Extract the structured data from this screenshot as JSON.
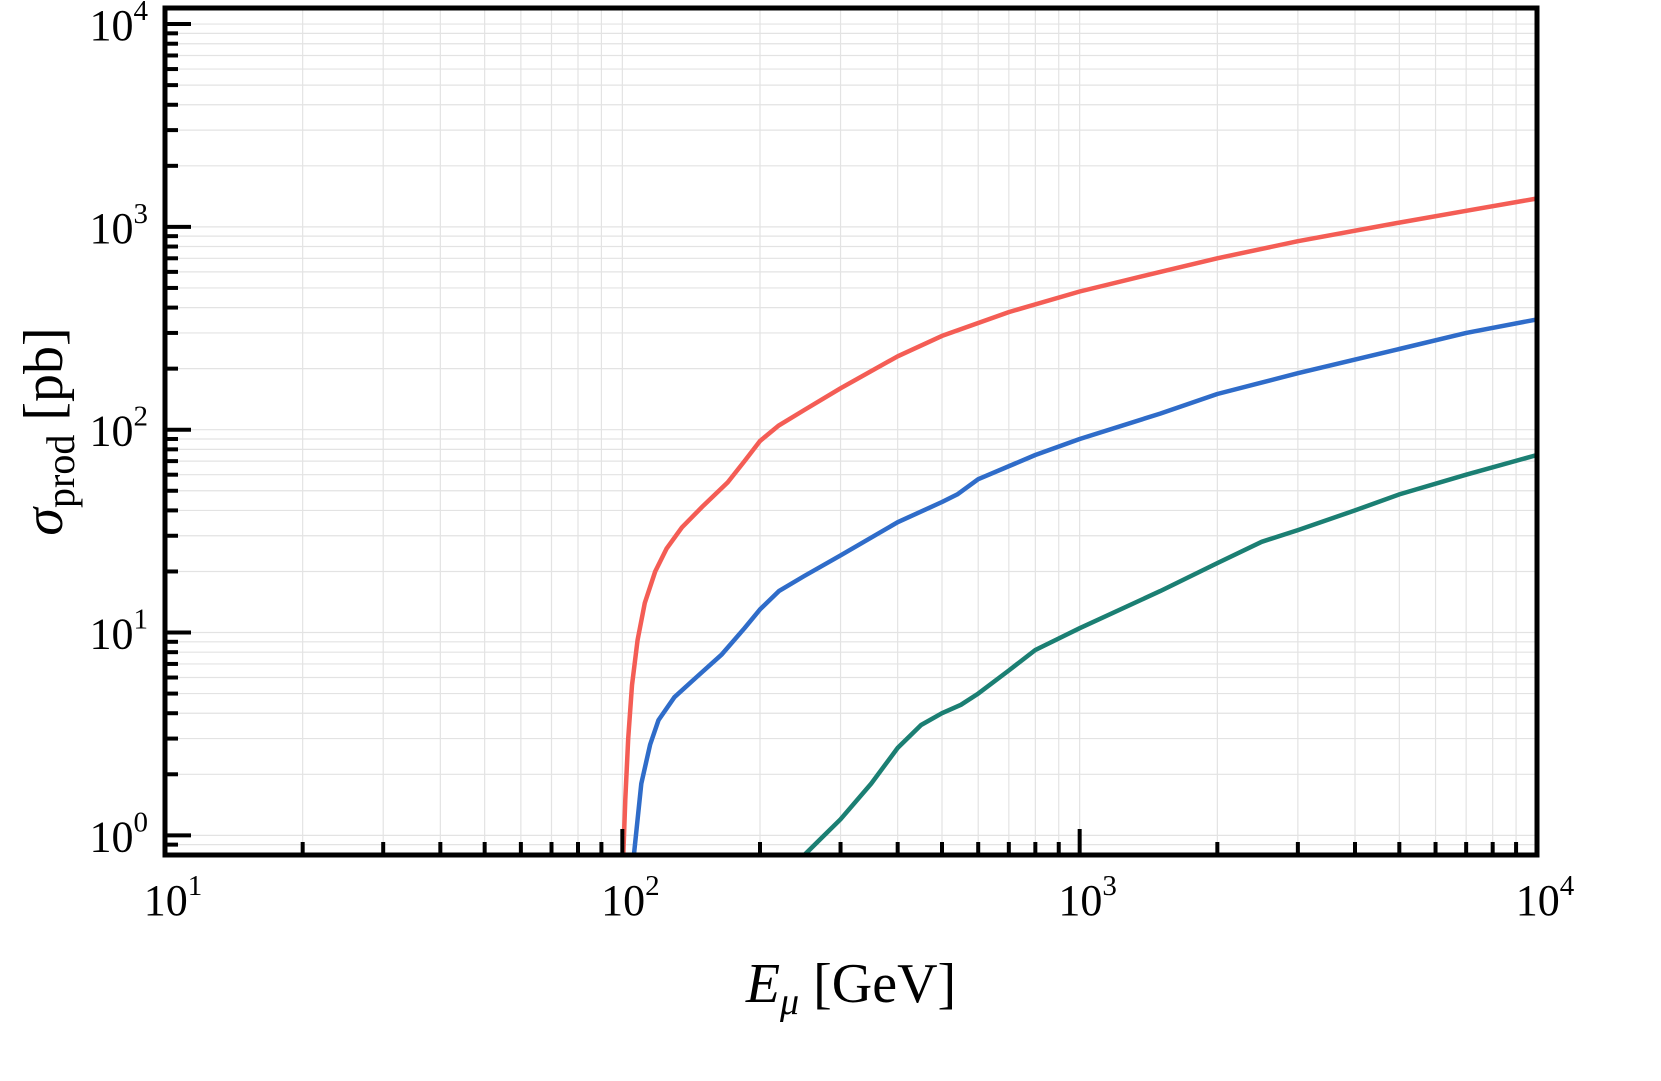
{
  "chart_data": {
    "type": "line",
    "xscale": "log",
    "yscale": "log",
    "xlim": [
      10,
      10000
    ],
    "ylim": [
      0.8,
      12000
    ],
    "grid": true,
    "xlabel": {
      "symbol": "E",
      "sub": "μ",
      "unit": " [GeV]"
    },
    "ylabel": {
      "symbol": "σ",
      "sub": "prod",
      "unit": " [pb]"
    },
    "xticks": [
      {
        "value": 10,
        "base": "10",
        "exp": "1"
      },
      {
        "value": 100,
        "base": "10",
        "exp": "2"
      },
      {
        "value": 1000,
        "base": "10",
        "exp": "3"
      },
      {
        "value": 10000,
        "base": "10",
        "exp": "4"
      }
    ],
    "yticks": [
      {
        "value": 1,
        "base": "10",
        "exp": "0"
      },
      {
        "value": 10,
        "base": "10",
        "exp": "1"
      },
      {
        "value": 100,
        "base": "10",
        "exp": "2"
      },
      {
        "value": 1000,
        "base": "10",
        "exp": "3"
      },
      {
        "value": 10000,
        "base": "10",
        "exp": "4"
      }
    ],
    "series": [
      {
        "color": "#f45d55",
        "points": [
          [
            100.5,
            0.8
          ],
          [
            101.5,
            1.5
          ],
          [
            103,
            3.0
          ],
          [
            105,
            5.5
          ],
          [
            108,
            9.2
          ],
          [
            112,
            14
          ],
          [
            118,
            20
          ],
          [
            125,
            26
          ],
          [
            135,
            33
          ],
          [
            150,
            42
          ],
          [
            170,
            55
          ],
          [
            185,
            70
          ],
          [
            200,
            88
          ],
          [
            220,
            105
          ],
          [
            250,
            125
          ],
          [
            300,
            160
          ],
          [
            400,
            230
          ],
          [
            500,
            290
          ],
          [
            700,
            380
          ],
          [
            1000,
            480
          ],
          [
            1500,
            600
          ],
          [
            2000,
            700
          ],
          [
            3000,
            850
          ],
          [
            5000,
            1050
          ],
          [
            7000,
            1200
          ],
          [
            10000,
            1380
          ]
        ]
      },
      {
        "color": "#2f6cc9",
        "points": [
          [
            106,
            0.8
          ],
          [
            108,
            1.2
          ],
          [
            110,
            1.8
          ],
          [
            115,
            2.8
          ],
          [
            120,
            3.7
          ],
          [
            130,
            4.8
          ],
          [
            145,
            6.0
          ],
          [
            165,
            7.8
          ],
          [
            185,
            10.5
          ],
          [
            200,
            13
          ],
          [
            220,
            16
          ],
          [
            250,
            19
          ],
          [
            300,
            24
          ],
          [
            400,
            35
          ],
          [
            500,
            44
          ],
          [
            540,
            48
          ],
          [
            600,
            57
          ],
          [
            800,
            75
          ],
          [
            1000,
            90
          ],
          [
            1500,
            120
          ],
          [
            2000,
            150
          ],
          [
            3000,
            190
          ],
          [
            5000,
            250
          ],
          [
            7000,
            300
          ],
          [
            10000,
            350
          ]
        ]
      },
      {
        "color": "#1b7f73",
        "points": [
          [
            250,
            0.8
          ],
          [
            270,
            0.95
          ],
          [
            300,
            1.2
          ],
          [
            350,
            1.8
          ],
          [
            400,
            2.7
          ],
          [
            450,
            3.5
          ],
          [
            500,
            4.0
          ],
          [
            550,
            4.4
          ],
          [
            600,
            5.0
          ],
          [
            700,
            6.5
          ],
          [
            800,
            8.2
          ],
          [
            1000,
            10.5
          ],
          [
            1500,
            16
          ],
          [
            2000,
            22
          ],
          [
            2500,
            28
          ],
          [
            3000,
            32
          ],
          [
            4000,
            40
          ],
          [
            5000,
            48
          ],
          [
            7000,
            60
          ],
          [
            10000,
            75
          ]
        ]
      }
    ]
  }
}
